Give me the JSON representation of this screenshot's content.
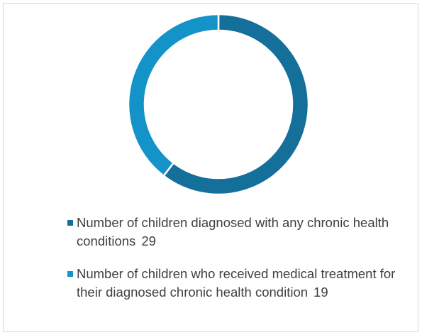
{
  "chart_data": {
    "type": "pie",
    "variant": "doughnut",
    "title": "",
    "legend_position": "bottom",
    "series": [
      {
        "slices": [
          {
            "label": "Number of children diagnosed with any chronic health conditions",
            "value": 29,
            "color": "#156F9B"
          },
          {
            "label": "Number of children who received medical treatment for their diagnosed chronic health condition",
            "value": 19,
            "color": "#1493C9"
          }
        ]
      }
    ]
  }
}
